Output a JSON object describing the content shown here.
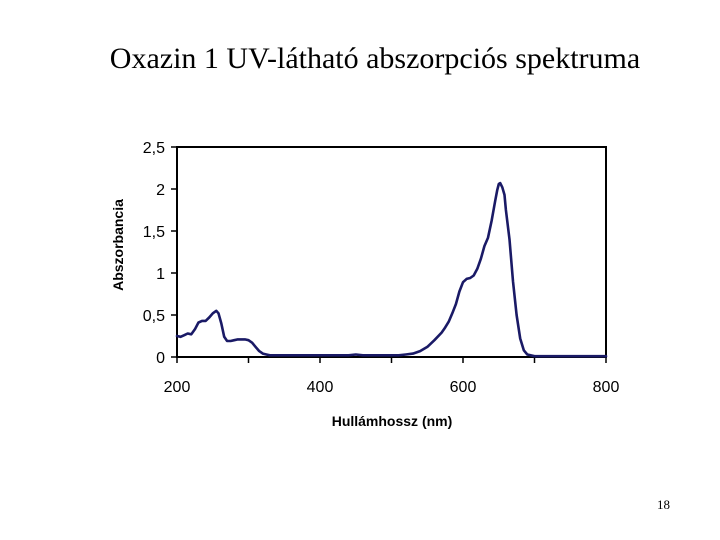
{
  "slide": {
    "title": "Oxazin 1 UV-látható abszorpciós spektruma",
    "page_number": "18"
  },
  "colors": {
    "line": "#1a1a66",
    "frame": "#000000"
  },
  "chart_data": {
    "type": "line",
    "title": "",
    "xlabel": "Hullámhossz (nm)",
    "ylabel": "Abszorbancia",
    "xlim": [
      200,
      800
    ],
    "ylim": [
      0,
      2.5
    ],
    "x_ticks": [
      "200",
      "400",
      "600",
      "800"
    ],
    "x_tick_values": [
      200,
      400,
      600,
      800
    ],
    "x_minor_ticks": [
      300,
      500,
      700
    ],
    "y_ticks": [
      "0",
      "0,5",
      "1",
      "1,5",
      "2",
      "2,5"
    ],
    "y_tick_values": [
      0,
      0.5,
      1,
      1.5,
      2,
      2.5
    ],
    "grid": false,
    "legend": "none",
    "series": [
      {
        "x": [
          200,
          205,
          210,
          215,
          220,
          225,
          230,
          235,
          240,
          245,
          250,
          255,
          258,
          262,
          266,
          270,
          275,
          280,
          285,
          290,
          295,
          300,
          305,
          310,
          315,
          320,
          325,
          330,
          340,
          350,
          360,
          380,
          400,
          420,
          440,
          450,
          460,
          480,
          500,
          510,
          520,
          530,
          540,
          550,
          560,
          570,
          575,
          580,
          585,
          590,
          595,
          600,
          605,
          610,
          615,
          620,
          625,
          630,
          635,
          640,
          645,
          648,
          650,
          652,
          655,
          658,
          660,
          665,
          670,
          675,
          680,
          685,
          690,
          700,
          720,
          750,
          800
        ],
        "y": [
          0.25,
          0.24,
          0.26,
          0.28,
          0.27,
          0.33,
          0.41,
          0.43,
          0.43,
          0.47,
          0.52,
          0.55,
          0.52,
          0.4,
          0.24,
          0.19,
          0.19,
          0.2,
          0.21,
          0.21,
          0.21,
          0.2,
          0.17,
          0.12,
          0.07,
          0.04,
          0.03,
          0.02,
          0.02,
          0.02,
          0.02,
          0.02,
          0.02,
          0.02,
          0.02,
          0.03,
          0.02,
          0.02,
          0.02,
          0.02,
          0.03,
          0.04,
          0.07,
          0.12,
          0.2,
          0.29,
          0.35,
          0.42,
          0.52,
          0.63,
          0.78,
          0.89,
          0.93,
          0.94,
          0.97,
          1.05,
          1.17,
          1.32,
          1.42,
          1.62,
          1.86,
          1.99,
          2.06,
          2.07,
          2.02,
          1.93,
          1.75,
          1.4,
          0.9,
          0.5,
          0.22,
          0.08,
          0.03,
          0.01,
          0.01,
          0.01,
          0.01
        ]
      }
    ]
  }
}
